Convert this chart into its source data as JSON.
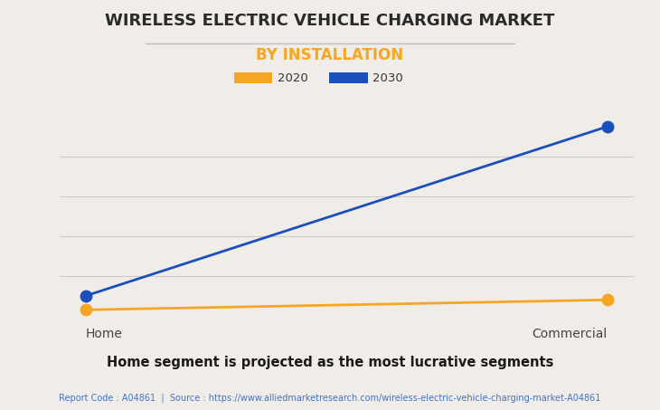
{
  "title": "WIRELESS ELECTRIC VEHICLE CHARGING MARKET",
  "subtitle": "BY INSTALLATION",
  "categories": [
    "Home",
    "Commercial"
  ],
  "series_2020": [
    0.03,
    0.08
  ],
  "series_2030": [
    0.1,
    0.95
  ],
  "color_2020": "#F5A623",
  "color_2030": "#1B4FBB",
  "background_color": "#F0EDE8",
  "plot_bg_color": "#F0EDE8",
  "title_fontsize": 13,
  "subtitle_fontsize": 12,
  "subtitle_color": "#F5A623",
  "legend_2020": "2020",
  "legend_2030": "2030",
  "caption": "Home segment is projected as the most lucrative segments",
  "source_text": "Report Code : A04861  |  Source : https://www.alliedmarketresearch.com/wireless-electric-vehicle-charging-market-A04861",
  "source_color": "#4472C4",
  "caption_color": "#1a1a1a",
  "marker_size": 9,
  "line_width": 2.0,
  "grid_color": "#cccccc",
  "tick_color": "#444444"
}
